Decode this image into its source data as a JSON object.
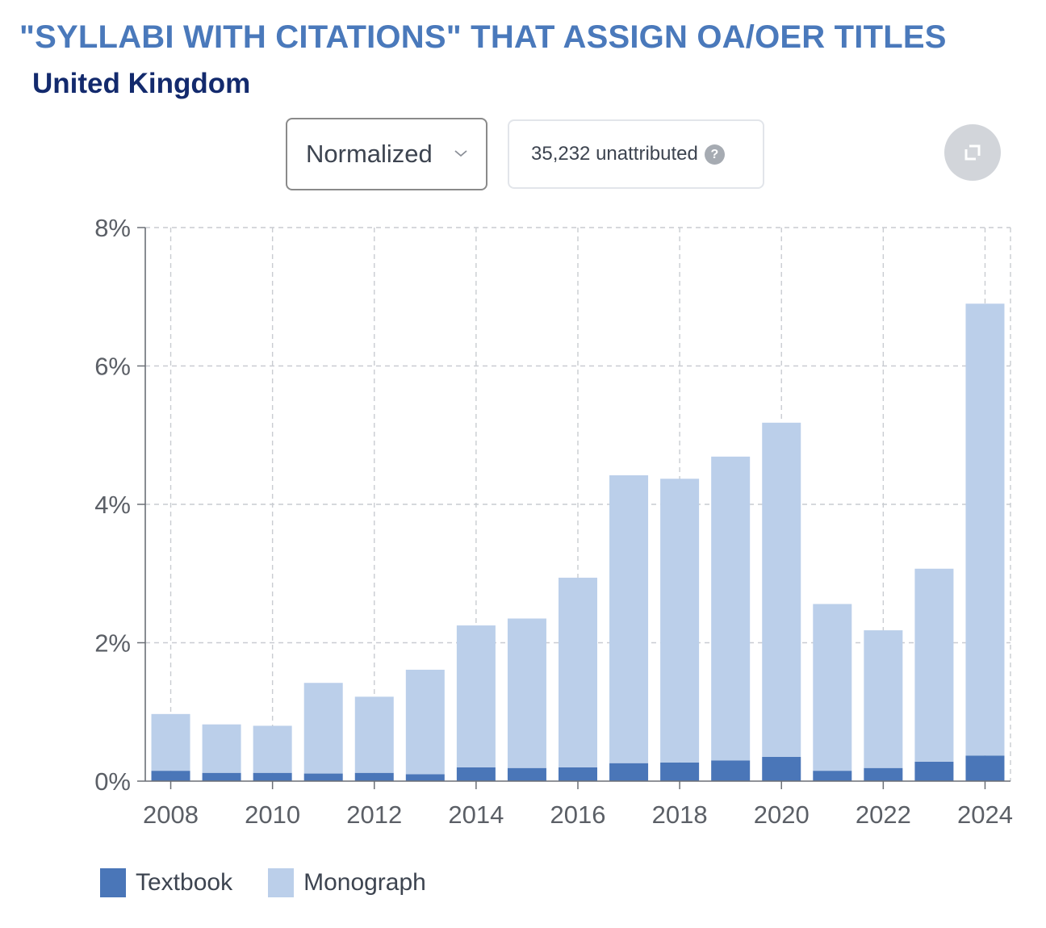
{
  "header": {
    "title": "\"SYLLABI WITH CITATIONS\" THAT ASSIGN OA/OER TITLES",
    "subtitle": "United Kingdom"
  },
  "controls": {
    "mode_select": "Normalized",
    "unattributed": "35,232 unattributed",
    "help_glyph": "?",
    "expand_icon": "expand-icon"
  },
  "colors": {
    "textbook": "#4a76b8",
    "monograph": "#bbcfea",
    "title": "#4a79bb",
    "subtitle": "#132a6d"
  },
  "chart_data": {
    "type": "bar",
    "stacked": true,
    "categories": [
      "2008",
      "2009",
      "2010",
      "2011",
      "2012",
      "2013",
      "2014",
      "2015",
      "2016",
      "2017",
      "2018",
      "2019",
      "2020",
      "2021",
      "2022",
      "2023",
      "2024"
    ],
    "series": [
      {
        "name": "Textbook",
        "values": [
          0.15,
          0.12,
          0.12,
          0.11,
          0.12,
          0.1,
          0.2,
          0.19,
          0.2,
          0.26,
          0.27,
          0.3,
          0.35,
          0.15,
          0.19,
          0.28,
          0.37
        ]
      },
      {
        "name": "Monograph",
        "values": [
          0.82,
          0.7,
          0.68,
          1.31,
          1.1,
          1.51,
          2.05,
          2.16,
          2.74,
          4.16,
          4.1,
          4.39,
          4.83,
          2.41,
          1.99,
          2.79,
          6.53
        ]
      }
    ],
    "x_tick_labels": [
      "2008",
      "2010",
      "2012",
      "2014",
      "2016",
      "2018",
      "2020",
      "2022",
      "2024"
    ],
    "y_tick_labels": [
      "0%",
      "2%",
      "4%",
      "6%",
      "8%"
    ],
    "ylim": [
      0,
      8
    ],
    "grid": true,
    "legend_position": "bottom-left"
  }
}
